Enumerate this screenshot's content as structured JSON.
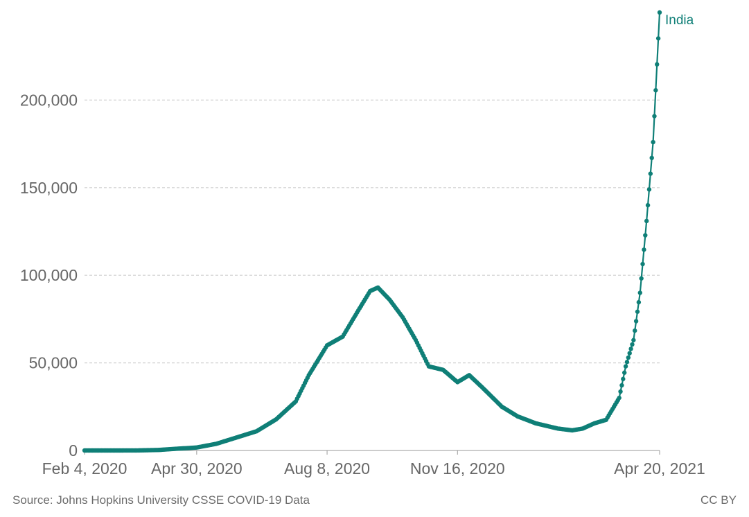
{
  "chart_data": {
    "type": "line",
    "title": "",
    "xlabel": "",
    "ylabel": "",
    "x_range": [
      "2020-02-04",
      "2021-04-20"
    ],
    "ylim": [
      0,
      250000
    ],
    "y_ticks": [
      0,
      50000,
      100000,
      150000,
      200000
    ],
    "y_tick_labels": [
      "0",
      "50,000",
      "100,000",
      "150,000",
      "200,000"
    ],
    "x_ticks": [
      "2020-02-04",
      "2020-04-30",
      "2020-08-08",
      "2020-11-16",
      "2021-04-20"
    ],
    "x_tick_labels": [
      "Feb 4, 2020",
      "Apr 30, 2020",
      "Aug 8, 2020",
      "Nov 16, 2020",
      "Apr 20, 2021"
    ],
    "grid": "horizontal-dashed",
    "color": "#0f7f77",
    "series": [
      {
        "name": "India",
        "points": [
          [
            "2020-02-04",
            0
          ],
          [
            "2020-03-01",
            0
          ],
          [
            "2020-03-15",
            20
          ],
          [
            "2020-04-01",
            300
          ],
          [
            "2020-04-15",
            1000
          ],
          [
            "2020-04-30",
            1700
          ],
          [
            "2020-05-15",
            3800
          ],
          [
            "2020-05-31",
            7500
          ],
          [
            "2020-06-15",
            11000
          ],
          [
            "2020-06-30",
            17800
          ],
          [
            "2020-07-15",
            28000
          ],
          [
            "2020-07-25",
            43000
          ],
          [
            "2020-08-08",
            60000
          ],
          [
            "2020-08-20",
            65000
          ],
          [
            "2020-09-01",
            80000
          ],
          [
            "2020-09-10",
            91000
          ],
          [
            "2020-09-16",
            93000
          ],
          [
            "2020-09-25",
            86000
          ],
          [
            "2020-10-05",
            76000
          ],
          [
            "2020-10-15",
            63000
          ],
          [
            "2020-10-25",
            48000
          ],
          [
            "2020-11-05",
            46000
          ],
          [
            "2020-11-16",
            39000
          ],
          [
            "2020-11-25",
            43000
          ],
          [
            "2020-12-05",
            36000
          ],
          [
            "2020-12-20",
            25000
          ],
          [
            "2021-01-01",
            19500
          ],
          [
            "2021-01-15",
            15500
          ],
          [
            "2021-02-01",
            12500
          ],
          [
            "2021-02-12",
            11500
          ],
          [
            "2021-02-20",
            12500
          ],
          [
            "2021-03-01",
            15500
          ],
          [
            "2021-03-10",
            17500
          ],
          [
            "2021-03-20",
            30000
          ],
          [
            "2021-03-25",
            48000
          ],
          [
            "2021-03-31",
            63000
          ],
          [
            "2021-04-05",
            90000
          ],
          [
            "2021-04-10",
            131000
          ],
          [
            "2021-04-15",
            176000
          ],
          [
            "2021-04-20",
            250000
          ]
        ]
      }
    ]
  },
  "footer": {
    "source": "Source: Johns Hopkins University CSSE COVID-19 Data",
    "license": "CC BY"
  }
}
